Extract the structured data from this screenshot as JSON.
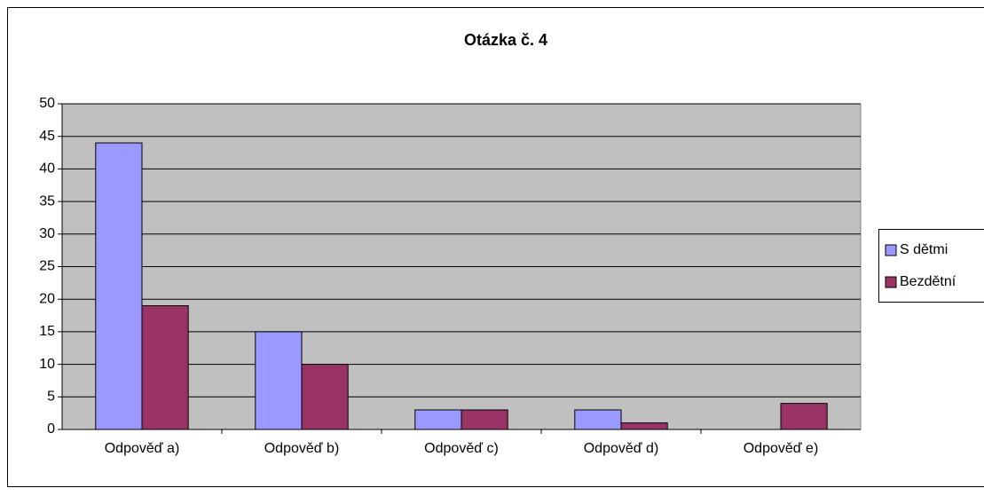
{
  "chart_data": {
    "type": "bar",
    "title": "Otázka č. 4",
    "categories": [
      "Odpověď a)",
      "Odpověď b)",
      "Odpověď c)",
      "Odpověď d)",
      "Odpověď e)"
    ],
    "series": [
      {
        "name": "S dětmi",
        "color": "#9999ff",
        "values": [
          44,
          15,
          3,
          3,
          0
        ]
      },
      {
        "name": "Bezdětní",
        "color": "#993366",
        "values": [
          19,
          10,
          3,
          1,
          4
        ]
      }
    ],
    "ylim": [
      0,
      50
    ],
    "yticks": [
      0,
      5,
      10,
      15,
      20,
      25,
      30,
      35,
      40,
      45,
      50
    ],
    "grid": true,
    "legend": "right",
    "plot_background": "#c0c0c0"
  }
}
